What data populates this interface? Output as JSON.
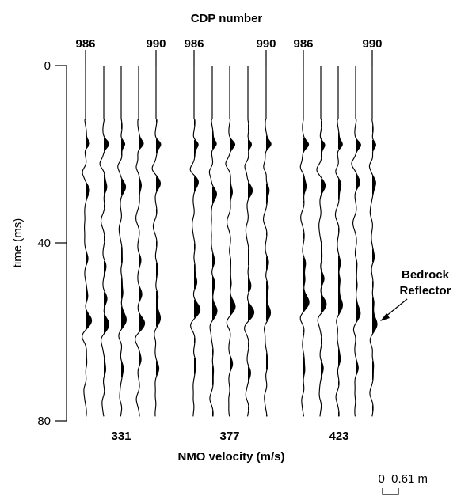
{
  "chart_data": {
    "type": "seismic-gather",
    "title": "CDP number",
    "xlabel": "NMO velocity (m/s)",
    "ylabel": "time (ms)",
    "ylim": [
      0,
      80
    ],
    "y_ticks": [
      "0",
      "40",
      "80"
    ],
    "panels": [
      {
        "velocity": "331",
        "cdp_labels": [
          "986",
          "990"
        ],
        "cdps": [
          986,
          987,
          988,
          989,
          990
        ],
        "reflector_time_ms": [
          57.5,
          58.0,
          57.5,
          58.0,
          57.0
        ]
      },
      {
        "velocity": "377",
        "cdp_labels": [
          "986",
          "990"
        ],
        "cdps": [
          986,
          987,
          988,
          989,
          990
        ],
        "reflector_time_ms": [
          55.0,
          55.0,
          54.5,
          55.5,
          55.5
        ]
      },
      {
        "velocity": "423",
        "cdp_labels": [
          "986",
          "990"
        ],
        "cdps": [
          986,
          987,
          988,
          989,
          990
        ],
        "reflector_time_ms": [
          53.5,
          53.5,
          54.0,
          56.0,
          58.5
        ]
      }
    ],
    "annotation": "Bedrock\nReflector",
    "scale_bar": "0  0.61 m"
  }
}
